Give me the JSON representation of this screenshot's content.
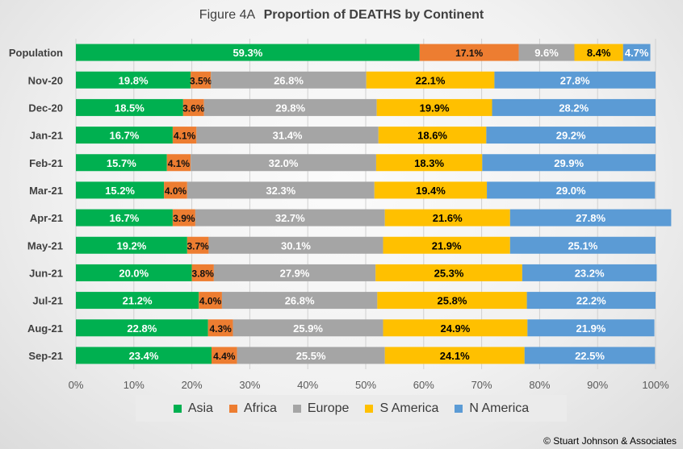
{
  "title_prefix": "Figure  4A",
  "title_main": "Proportion of DEATHS by Continent",
  "copyright": "© Stuart Johnson & Associates",
  "colors": {
    "Asia": "#00b050",
    "Africa": "#ed7d31",
    "Europe": "#a5a5a5",
    "S America": "#ffc000",
    "N America": "#5b9bd5"
  },
  "chart_data": {
    "type": "bar",
    "orientation": "horizontal",
    "stacked": true,
    "percent": true,
    "title": "Figure  4A  Proportion of DEATHS by Continent",
    "categories": [
      "Population",
      "Nov-20",
      "Dec-20",
      "Jan-21",
      "Feb-21",
      "Mar-21",
      "Apr-21",
      "May-21",
      "Jun-21",
      "Jul-21",
      "Aug-21",
      "Sep-21"
    ],
    "series": [
      {
        "name": "Asia",
        "values": [
          59.3,
          19.8,
          18.5,
          16.7,
          15.7,
          15.2,
          16.7,
          19.2,
          20.0,
          21.2,
          22.8,
          23.4
        ]
      },
      {
        "name": "Africa",
        "values": [
          17.1,
          3.5,
          3.6,
          4.1,
          4.1,
          4.0,
          3.9,
          3.7,
          3.8,
          4.0,
          4.3,
          4.4
        ]
      },
      {
        "name": "Europe",
        "values": [
          9.6,
          26.8,
          29.8,
          31.4,
          32.0,
          32.3,
          32.7,
          30.1,
          27.9,
          26.8,
          25.9,
          25.5
        ]
      },
      {
        "name": "S America",
        "values": [
          8.4,
          22.1,
          19.9,
          18.6,
          18.3,
          19.4,
          21.6,
          21.9,
          25.3,
          25.8,
          24.9,
          24.1
        ]
      },
      {
        "name": "N America",
        "values": [
          4.7,
          27.8,
          28.2,
          29.2,
          29.9,
          29.0,
          27.8,
          25.1,
          23.2,
          22.2,
          21.9,
          22.5
        ]
      }
    ],
    "xlim": [
      0,
      100
    ],
    "x_ticks": [
      "0%",
      "10%",
      "20%",
      "30%",
      "40%",
      "50%",
      "60%",
      "70%",
      "80%",
      "90%",
      "100%"
    ],
    "grid": true,
    "legend": "bottom"
  }
}
